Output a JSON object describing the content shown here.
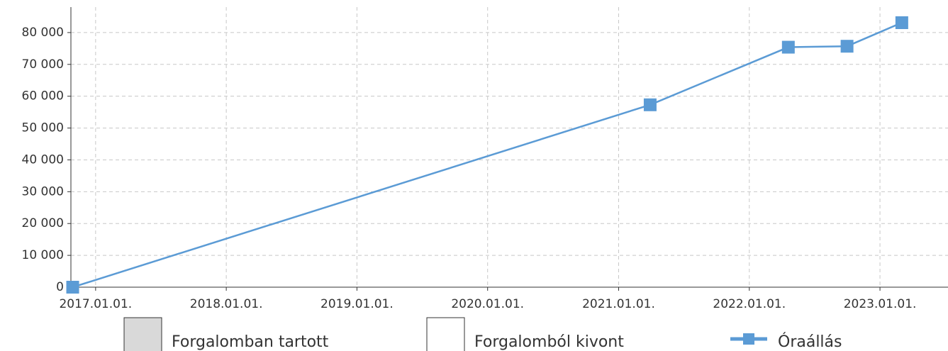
{
  "chart_data": {
    "type": "line",
    "x": [
      "2016-10-29",
      "2021-03-30",
      "2022-04-20",
      "2022-10-01",
      "2023-03-03"
    ],
    "series": [
      {
        "name": "Óraállás",
        "color": "#5b9bd5",
        "values": [
          0,
          57300,
          75400,
          75700,
          83100
        ]
      }
    ],
    "area_legend": [
      {
        "name": "Forgalomban tartott",
        "color": "#d9d9d9"
      },
      {
        "name": "Forgalomból kivont",
        "color": "#ffffff"
      }
    ],
    "xlim": [
      "2016-10-24",
      "2023-07-10"
    ],
    "xticks": [
      {
        "value": "2017-01-01",
        "label": "2017.01.01."
      },
      {
        "value": "2018-01-01",
        "label": "2018.01.01."
      },
      {
        "value": "2019-01-01",
        "label": "2019.01.01."
      },
      {
        "value": "2020-01-01",
        "label": "2020.01.01."
      },
      {
        "value": "2021-01-01",
        "label": "2021.01.01."
      },
      {
        "value": "2022-01-01",
        "label": "2022.01.01."
      },
      {
        "value": "2023-01-01",
        "label": "2023.01.01."
      }
    ],
    "ylim": [
      0,
      88000
    ],
    "yticks": [
      0,
      {
        "value": 10000,
        "label": "10 000"
      },
      {
        "value": 20000,
        "label": "20 000"
      },
      {
        "value": 30000,
        "label": "30 000"
      },
      {
        "value": 40000,
        "label": "40 000"
      },
      {
        "value": 50000,
        "label": "50 000"
      },
      {
        "value": 60000,
        "label": "60 000"
      },
      {
        "value": 70000,
        "label": "70 000"
      },
      {
        "value": 80000,
        "label": "80 000"
      }
    ],
    "grid": true
  }
}
